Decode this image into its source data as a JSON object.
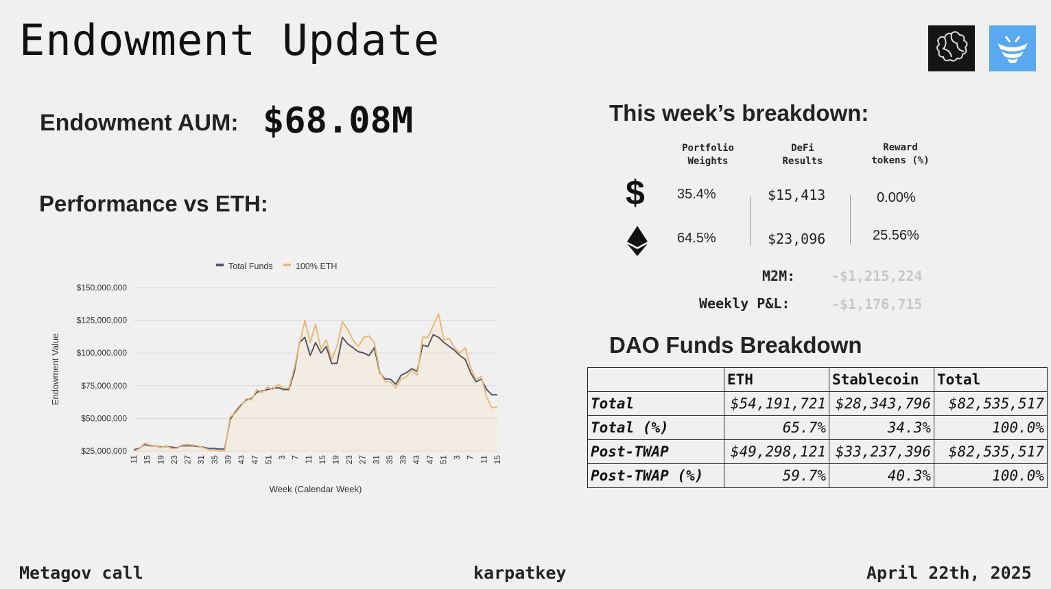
{
  "header": {
    "title": "Endowment Update",
    "logos": [
      "puzzle-logo-icon",
      "karpatkey-logo-icon"
    ]
  },
  "aum": {
    "label": "Endowment AUM:",
    "value": "$68.08M"
  },
  "performance": {
    "title": "Performance vs ETH:"
  },
  "chart_data": {
    "type": "line",
    "title": "",
    "xlabel": "Week (Calendar Week)",
    "ylabel": "Endowment Value",
    "ylim": [
      25000000,
      150000000
    ],
    "yticks": [
      25000000,
      50000000,
      75000000,
      100000000,
      125000000,
      150000000
    ],
    "ytick_labels": [
      "$25,000,000",
      "$50,000,000",
      "$75,000,000",
      "$100,000,000",
      "$125,000,000",
      "$150,000,000"
    ],
    "xtick_labels": [
      "11",
      "15",
      "19",
      "23",
      "27",
      "31",
      "35",
      "39",
      "43",
      "47",
      "51",
      "3",
      "7",
      "11",
      "15",
      "19",
      "23",
      "27",
      "31",
      "35",
      "39",
      "43",
      "47",
      "51",
      "3",
      "7",
      "11",
      "15"
    ],
    "legend_position": "top",
    "grid": true,
    "colors": {
      "Total Funds": "#555566",
      "100% ETH": "#e8b878"
    },
    "series": [
      {
        "name": "Total Funds",
        "values": [
          26000000,
          27000000,
          30000000,
          29000000,
          29000000,
          28000000,
          28500000,
          28000000,
          27500000,
          29000000,
          29000000,
          29000000,
          28500000,
          28000000,
          27000000,
          27000000,
          26500000,
          26500000,
          49000000,
          55000000,
          60000000,
          64000000,
          65000000,
          70000000,
          71000000,
          72000000,
          73000000,
          73500000,
          72000000,
          72000000,
          85000000,
          108000000,
          112000000,
          98000000,
          108000000,
          100000000,
          105000000,
          92000000,
          92000000,
          112000000,
          107000000,
          104000000,
          101000000,
          100000000,
          98000000,
          104000000,
          85000000,
          80000000,
          80000000,
          76000000,
          83000000,
          85000000,
          88000000,
          86000000,
          106000000,
          105000000,
          114000000,
          112000000,
          108000000,
          105000000,
          102000000,
          98000000,
          95000000,
          85000000,
          78000000,
          80000000,
          72000000,
          68000000,
          68000000
        ]
      },
      {
        "name": "100% ETH",
        "values": [
          25000000,
          26500000,
          31000000,
          29500000,
          29000000,
          27500000,
          29000000,
          27000000,
          27000000,
          29500000,
          30000000,
          29500000,
          29000000,
          27500000,
          26000000,
          25500000,
          25000000,
          25000000,
          51000000,
          54000000,
          59000000,
          65000000,
          64000000,
          72000000,
          70000000,
          74000000,
          72000000,
          76000000,
          73000000,
          73000000,
          88000000,
          107000000,
          125000000,
          108000000,
          122000000,
          103000000,
          110000000,
          95000000,
          105000000,
          124000000,
          118000000,
          110000000,
          105000000,
          112000000,
          113000000,
          108000000,
          86000000,
          78000000,
          78000000,
          73000000,
          80000000,
          82000000,
          87000000,
          83000000,
          112000000,
          112000000,
          121000000,
          130000000,
          110000000,
          111000000,
          104000000,
          100000000,
          104000000,
          89000000,
          80000000,
          82000000,
          66000000,
          58000000,
          59000000
        ]
      }
    ]
  },
  "breakdown": {
    "title": "This week’s breakdown:",
    "columns": [
      "Portfolio\nWeights",
      "DeFi\nResults",
      "Reward\ntokens (%)"
    ],
    "rows": [
      {
        "icon": "dollar-icon",
        "weight": "35.4%",
        "defi": "$15,413",
        "reward": "0.00%"
      },
      {
        "icon": "ethereum-icon",
        "weight": "64.5%",
        "defi": "$23,096",
        "reward": "25.56%"
      }
    ],
    "m2m_label": "M2M:",
    "m2m_value": "-$1,215,224",
    "pnl_label": "Weekly P&L:",
    "pnl_value": "-$1,176,715"
  },
  "dao": {
    "title": "DAO Funds Breakdown",
    "headers": [
      "",
      "ETH",
      "Stablecoin",
      "Total"
    ],
    "rows": [
      [
        "Total",
        "$54,191,721",
        "$28,343,796",
        "$82,535,517"
      ],
      [
        "Total (%)",
        "65.7%",
        "34.3%",
        "100.0%"
      ],
      [
        "Post-TWAP",
        "$49,298,121",
        "$33,237,396",
        "$82,535,517"
      ],
      [
        "Post-TWAP (%)",
        "59.7%",
        "40.3%",
        "100.0%"
      ]
    ]
  },
  "footer": {
    "left": "Metagov call",
    "center": "karpatkey",
    "right": "April 22th, 2025"
  }
}
